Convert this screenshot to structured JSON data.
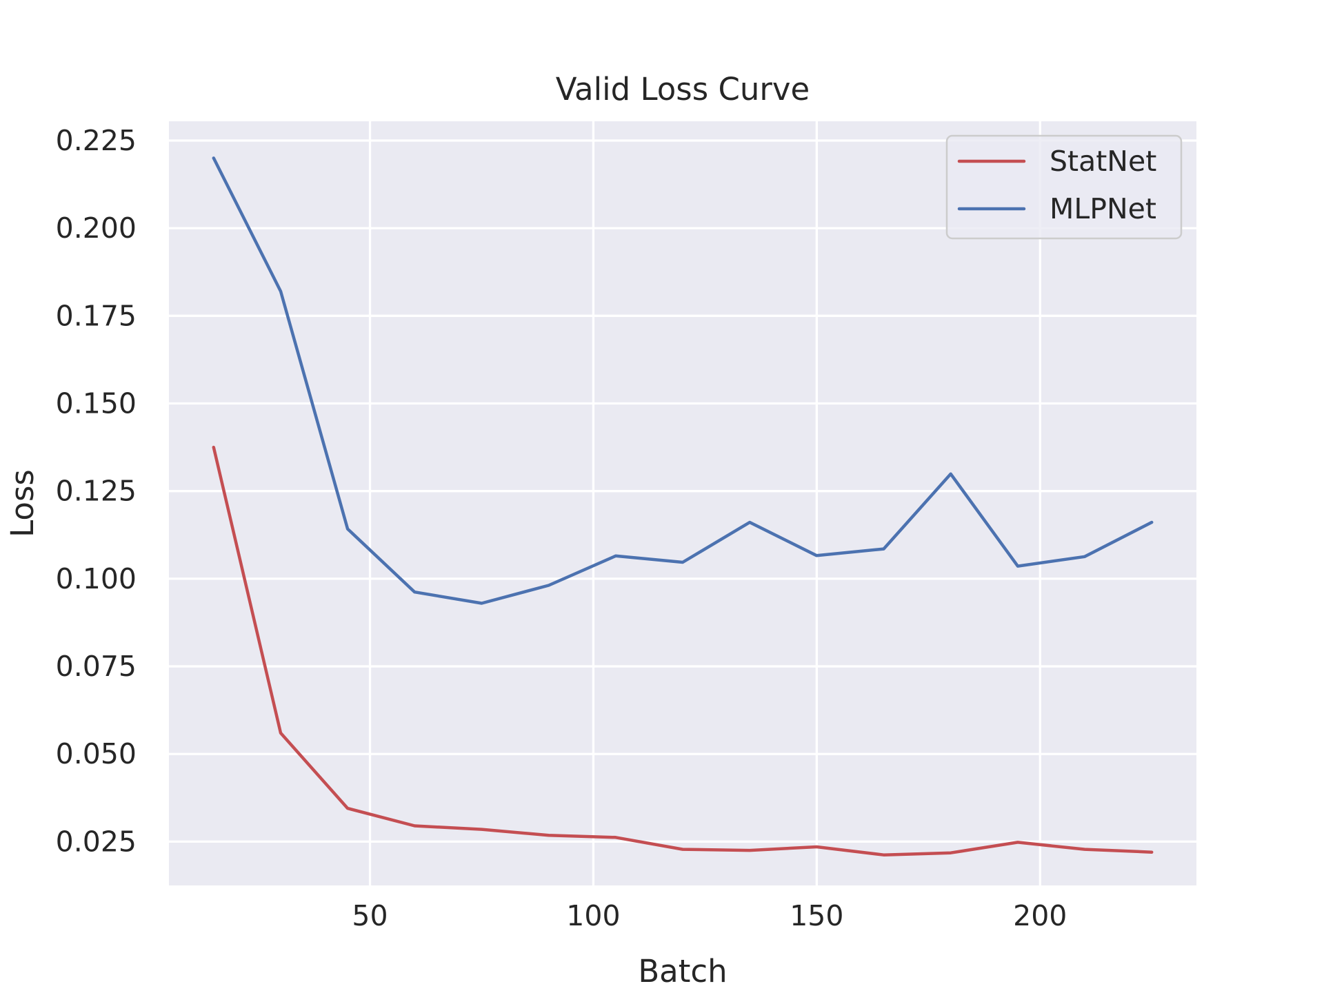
{
  "chart_data": {
    "type": "line",
    "title": "Valid Loss Curve",
    "xlabel": "Batch",
    "ylabel": "Loss",
    "xlim": [
      5,
      235
    ],
    "ylim": [
      0.0125,
      0.2305
    ],
    "x_ticks": [
      50,
      100,
      150,
      200
    ],
    "x_tick_labels": [
      "50",
      "100",
      "150",
      "200"
    ],
    "y_ticks": [
      0.025,
      0.05,
      0.075,
      0.1,
      0.125,
      0.15,
      0.175,
      0.2,
      0.225
    ],
    "y_tick_labels": [
      "0.025",
      "0.050",
      "0.075",
      "0.100",
      "0.125",
      "0.150",
      "0.175",
      "0.200",
      "0.225"
    ],
    "grid": true,
    "legend_position": "upper right",
    "background_color": "#eaeaf2",
    "x": [
      15,
      30,
      45,
      60,
      75,
      90,
      105,
      120,
      135,
      150,
      165,
      180,
      195,
      210,
      225
    ],
    "series": [
      {
        "name": "StatNet",
        "color": "#c44e52",
        "values": [
          0.1375,
          0.056,
          0.0345,
          0.0295,
          0.0285,
          0.0268,
          0.0262,
          0.0228,
          0.0225,
          0.0235,
          0.0212,
          0.0218,
          0.0248,
          0.0228,
          0.022
        ]
      },
      {
        "name": "MLPNet",
        "color": "#4c72b0",
        "values": [
          0.22,
          0.182,
          0.1142,
          0.0962,
          0.093,
          0.0981,
          0.1065,
          0.1047,
          0.1161,
          0.1066,
          0.1085,
          0.1299,
          0.1036,
          0.1063,
          0.1161
        ]
      }
    ]
  }
}
